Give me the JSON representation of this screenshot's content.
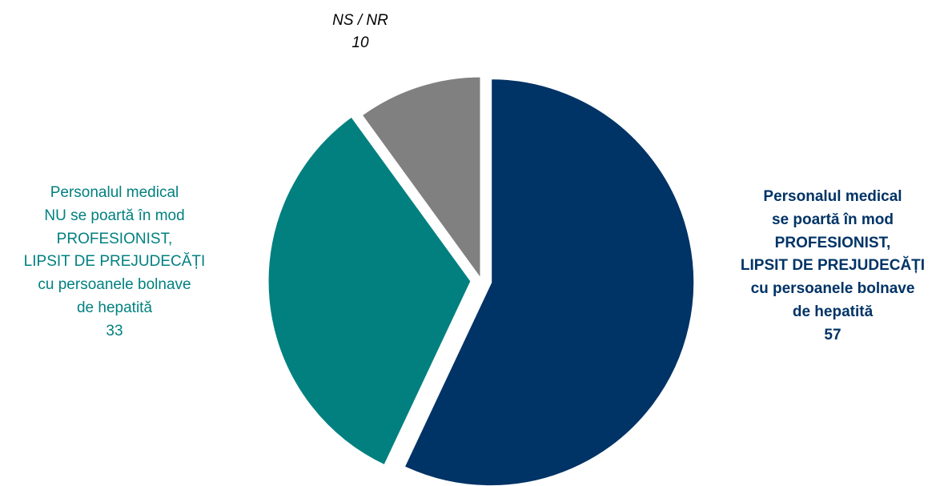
{
  "chart_data": {
    "type": "pie",
    "start_angle_deg": 0,
    "direction": "clockwise",
    "slices": [
      {
        "label_lines": [
          "Personalul medical",
          "se poartă în mod",
          "PROFESIONIST,",
          "LIPSIT DE PREJUDECĂȚI",
          "cu persoanele bolnave",
          "de hepatită"
        ],
        "value": 57,
        "value_label": "57",
        "color": "#003366"
      },
      {
        "label_lines": [
          "Personalul medical",
          "NU se poartă în mod",
          "PROFESIONIST,",
          "LIPSIT DE PREJUDECĂȚI",
          "cu persoanele bolnave",
          "de hepatită"
        ],
        "value": 33,
        "value_label": "33",
        "color": "#028080"
      },
      {
        "label_lines": [
          "NS / NR"
        ],
        "value": 10,
        "value_label": "10",
        "color": "#808080"
      }
    ]
  }
}
